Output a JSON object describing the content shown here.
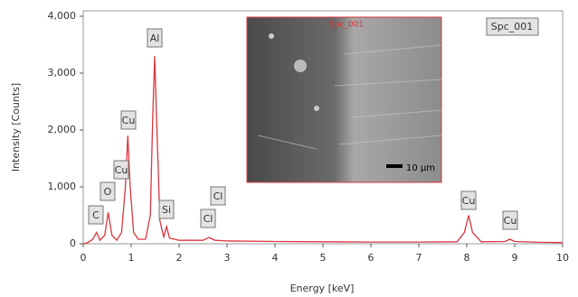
{
  "chart_data": {
    "type": "line",
    "xlabel": "Energy [keV]",
    "ylabel": "Intensity [Counts]",
    "x": [
      0,
      0.1,
      0.2,
      0.28,
      0.35,
      0.45,
      0.52,
      0.6,
      0.7,
      0.8,
      0.88,
      0.93,
      0.98,
      1.05,
      1.15,
      1.3,
      1.4,
      1.45,
      1.49,
      1.53,
      1.6,
      1.68,
      1.74,
      1.8,
      2.0,
      2.3,
      2.5,
      2.62,
      2.75,
      3.0,
      4.0,
      5.0,
      6.0,
      7.0,
      7.8,
      7.95,
      8.04,
      8.12,
      8.3,
      8.8,
      8.9,
      9.0,
      9.5,
      10
    ],
    "series": [
      {
        "name": "Spc_001",
        "color": "#d9363e",
        "values": [
          0,
          20,
          80,
          200,
          60,
          150,
          550,
          150,
          60,
          200,
          1000,
          1900,
          1000,
          200,
          80,
          80,
          500,
          2200,
          3300,
          2200,
          400,
          120,
          300,
          100,
          60,
          60,
          60,
          110,
          60,
          50,
          40,
          35,
          30,
          30,
          35,
          200,
          500,
          200,
          35,
          40,
          80,
          40,
          25,
          20
        ]
      }
    ],
    "xlim": [
      0,
      10
    ],
    "xticks": [
      0,
      1,
      2,
      3,
      4,
      5,
      6,
      7,
      8,
      9,
      10
    ],
    "ylim": [
      0,
      4000
    ],
    "yticks": [
      0,
      {
        "value": 1000,
        "label": "1,000"
      },
      {
        "value": 2000,
        "label": "2,000"
      },
      {
        "value": 3000,
        "label": "3,000"
      },
      {
        "value": 4000,
        "label": "4,000"
      }
    ],
    "annotations": [
      "C",
      "O",
      "Cu",
      "Cu",
      "Al",
      "Si",
      "Cl",
      "Cl",
      "Cu",
      "Cu"
    ],
    "inset": {
      "title": "Spc_001",
      "scale_bar": "10 µm"
    }
  }
}
